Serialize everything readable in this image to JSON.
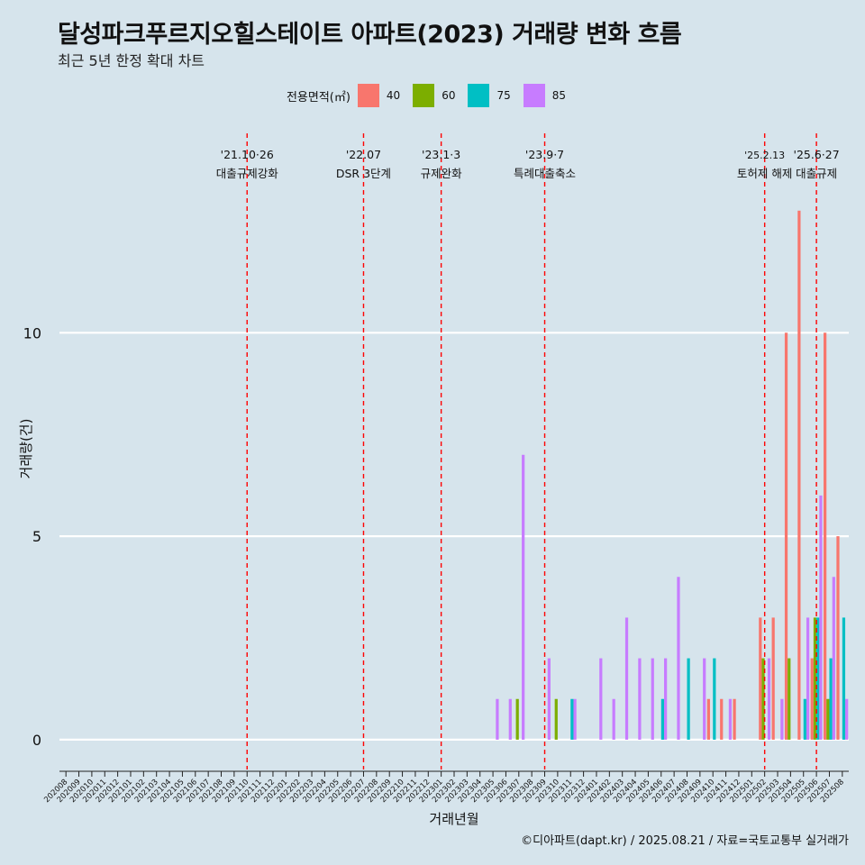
{
  "title": "달성파크푸르지오힐스테이트 아파트(2023) 거래량 변화 흐름",
  "subtitle": "최근 5년 한정 확대 차트",
  "caption": "©디아파트(dapt.kr) / 2025.08.21 / 자료=국토교통부 실거래가",
  "legend": {
    "title": "전용면적(㎡)",
    "items": [
      {
        "label": "40",
        "color": "#f8766d"
      },
      {
        "label": "60",
        "color": "#7cae00"
      },
      {
        "label": "75",
        "color": "#00bfc4"
      },
      {
        "label": "85",
        "color": "#c77cff"
      }
    ]
  },
  "chart_data": {
    "type": "bar",
    "xlabel": "거래년월",
    "ylabel": "거래량(건)",
    "ylim": [
      -0.6,
      14.9
    ],
    "yticks": [
      0,
      5,
      10
    ],
    "grid": true,
    "legend_position": "top",
    "categories": [
      "202008",
      "202009",
      "202010",
      "202011",
      "202012",
      "202101",
      "202102",
      "202103",
      "202104",
      "202105",
      "202106",
      "202107",
      "202108",
      "202109",
      "202110",
      "202111",
      "202112",
      "202201",
      "202202",
      "202203",
      "202204",
      "202205",
      "202206",
      "202207",
      "202208",
      "202209",
      "202210",
      "202211",
      "202212",
      "202301",
      "202302",
      "202303",
      "202304",
      "202305",
      "202306",
      "202307",
      "202308",
      "202309",
      "202310",
      "202311",
      "202312",
      "202401",
      "202402",
      "202403",
      "202404",
      "202405",
      "202406",
      "202407",
      "202408",
      "202409",
      "202410",
      "202411",
      "202412",
      "202501",
      "202502",
      "202503",
      "202504",
      "202505",
      "202506",
      "202507",
      "202508"
    ],
    "series": [
      {
        "name": "40",
        "color": "#f8766d",
        "values": [
          0,
          0,
          0,
          0,
          0,
          0,
          0,
          0,
          0,
          0,
          0,
          0,
          0,
          0,
          0,
          0,
          0,
          0,
          0,
          0,
          0,
          0,
          0,
          0,
          0,
          0,
          0,
          0,
          0,
          0,
          0,
          0,
          0,
          0,
          0,
          0,
          0,
          0,
          0,
          0,
          0,
          0,
          0,
          0,
          0,
          0,
          0,
          0,
          0,
          0,
          1,
          1,
          1,
          0,
          3,
          3,
          10,
          13,
          2,
          10,
          5
        ]
      },
      {
        "name": "60",
        "color": "#7cae00",
        "values": [
          0,
          0,
          0,
          0,
          0,
          0,
          0,
          0,
          0,
          0,
          0,
          0,
          0,
          0,
          0,
          0,
          0,
          0,
          0,
          0,
          0,
          0,
          0,
          0,
          0,
          0,
          0,
          0,
          0,
          0,
          0,
          0,
          0,
          0,
          0,
          1,
          0,
          0,
          1,
          0,
          0,
          0,
          0,
          0,
          0,
          0,
          0,
          0,
          0,
          0,
          0,
          0,
          0,
          0,
          2,
          0,
          2,
          0,
          3,
          1,
          0
        ]
      },
      {
        "name": "75",
        "color": "#00bfc4",
        "values": [
          0,
          0,
          0,
          0,
          0,
          0,
          0,
          0,
          0,
          0,
          0,
          0,
          0,
          0,
          0,
          0,
          0,
          0,
          0,
          0,
          0,
          0,
          0,
          0,
          0,
          0,
          0,
          0,
          0,
          0,
          0,
          0,
          0,
          0,
          0,
          0,
          0,
          0,
          0,
          1,
          0,
          0,
          0,
          0,
          0,
          0,
          1,
          0,
          2,
          0,
          2,
          0,
          0,
          0,
          0,
          0,
          0,
          1,
          3,
          2,
          3
        ]
      },
      {
        "name": "85",
        "color": "#c77cff",
        "values": [
          0,
          0,
          0,
          0,
          0,
          0,
          0,
          0,
          0,
          0,
          0,
          0,
          0,
          0,
          0,
          0,
          0,
          0,
          0,
          0,
          0,
          0,
          0,
          0,
          0,
          0,
          0,
          0,
          0,
          0,
          0,
          0,
          0,
          1,
          1,
          7,
          0,
          2,
          0,
          1,
          0,
          2,
          1,
          3,
          2,
          2,
          2,
          4,
          0,
          2,
          0,
          1,
          0,
          0,
          2,
          1,
          0,
          3,
          6,
          4,
          1
        ]
      }
    ],
    "events": [
      {
        "category": "202110",
        "date": "'21.10·26",
        "label": "대출규제강화"
      },
      {
        "category": "202207",
        "date": "'22.07",
        "label": "DSR 3단계"
      },
      {
        "category": "202301",
        "date": "'23.1·3",
        "label": "규제완화"
      },
      {
        "category": "202309",
        "date": "'23.9·7",
        "label": "특례대출축소"
      },
      {
        "category": "202502",
        "date": "'25.2.13",
        "label": "토허제 해제"
      },
      {
        "category": "202506",
        "date": "'25.6·27",
        "label": "대출규제"
      }
    ]
  }
}
